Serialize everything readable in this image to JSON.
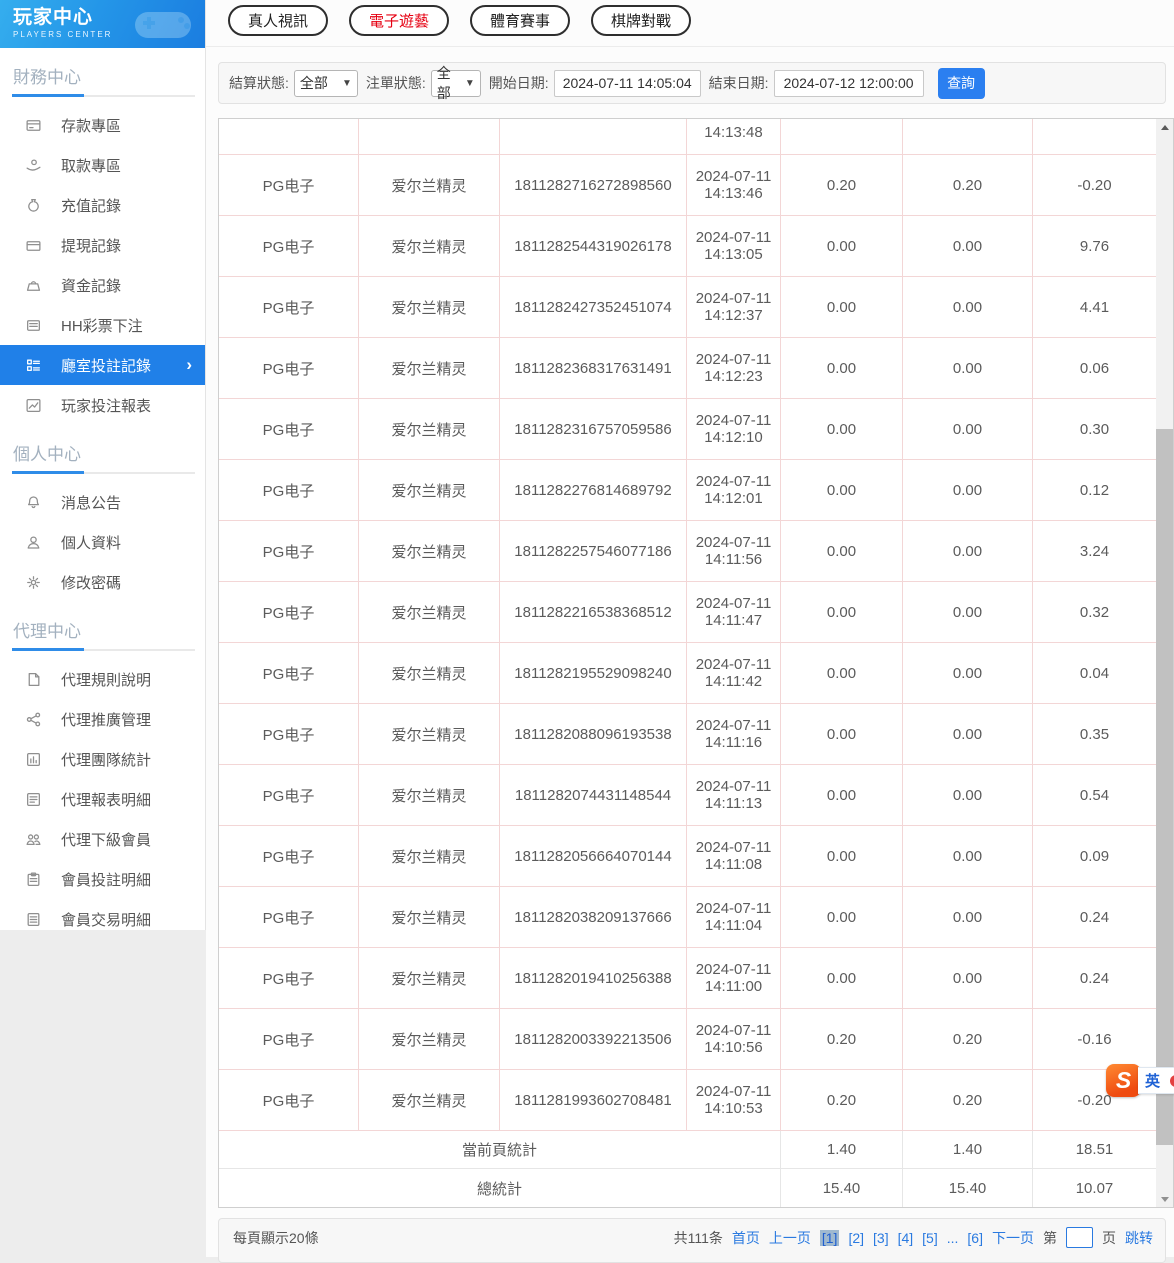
{
  "sidebar": {
    "logo_title": "玩家中心",
    "logo_subtitle": "PLAYERS CENTER",
    "sections": [
      {
        "title": "財務中心",
        "items": [
          {
            "label": "存款專區",
            "icon": "deposit-card-icon",
            "active": false
          },
          {
            "label": "取款專區",
            "icon": "withdraw-hand-icon",
            "active": false
          },
          {
            "label": "充值記錄",
            "icon": "recharge-record-icon",
            "active": false
          },
          {
            "label": "提現記錄",
            "icon": "withdraw-record-icon",
            "active": false
          },
          {
            "label": "資金記錄",
            "icon": "funds-record-icon",
            "active": false
          },
          {
            "label": "HH彩票下注",
            "icon": "lottery-bet-icon",
            "active": false
          },
          {
            "label": "廳室投註記錄",
            "icon": "room-bet-record-icon",
            "active": true
          },
          {
            "label": "玩家投注報表",
            "icon": "player-bet-report-icon",
            "active": false
          }
        ]
      },
      {
        "title": "個人中心",
        "items": [
          {
            "label": "消息公告",
            "icon": "announcement-bell-icon",
            "active": false
          },
          {
            "label": "個人資料",
            "icon": "profile-person-icon",
            "active": false
          },
          {
            "label": "修改密碼",
            "icon": "change-password-gear-icon",
            "active": false
          }
        ]
      },
      {
        "title": "代理中心",
        "items": [
          {
            "label": "代理規則說明",
            "icon": "agent-rules-doc-icon",
            "active": false
          },
          {
            "label": "代理推廣管理",
            "icon": "agent-promo-share-icon",
            "active": false
          },
          {
            "label": "代理團隊統計",
            "icon": "agent-team-stats-icon",
            "active": false
          },
          {
            "label": "代理報表明細",
            "icon": "agent-report-detail-icon",
            "active": false
          },
          {
            "label": "代理下級會員",
            "icon": "agent-members-people-icon",
            "active": false
          },
          {
            "label": "會員投註明細",
            "icon": "member-bet-detail-icon",
            "active": false
          },
          {
            "label": "會員交易明細",
            "icon": "member-trans-detail-icon",
            "active": false
          }
        ]
      }
    ]
  },
  "tabs": [
    {
      "label": "真人視訊",
      "active": false
    },
    {
      "label": "電子遊藝",
      "active": true
    },
    {
      "label": "體育賽事",
      "active": false
    },
    {
      "label": "棋牌對戰",
      "active": false
    }
  ],
  "filters": {
    "settle_status_label": "結算狀態:",
    "settle_status_value": "全部",
    "order_status_label": "注單狀態:",
    "order_status_value": "全部",
    "start_date_label": "開始日期:",
    "start_date_value": "2024-07-11 14:05:04",
    "end_date_label": "結束日期:",
    "end_date_value": "2024-07-12 12:00:00",
    "search_button": "查詢"
  },
  "table": {
    "partial_row_time": "14:13:48",
    "rows": [
      {
        "platform": "PG电子",
        "game": "爱尔兰精灵",
        "order_id": "1811282716272898560",
        "date": "2024-07-11",
        "time": "14:13:46",
        "bet": "0.20",
        "valid_bet": "0.20",
        "win_loss": "-0.20"
      },
      {
        "platform": "PG电子",
        "game": "爱尔兰精灵",
        "order_id": "1811282544319026178",
        "date": "2024-07-11",
        "time": "14:13:05",
        "bet": "0.00",
        "valid_bet": "0.00",
        "win_loss": "9.76"
      },
      {
        "platform": "PG电子",
        "game": "爱尔兰精灵",
        "order_id": "1811282427352451074",
        "date": "2024-07-11",
        "time": "14:12:37",
        "bet": "0.00",
        "valid_bet": "0.00",
        "win_loss": "4.41"
      },
      {
        "platform": "PG电子",
        "game": "爱尔兰精灵",
        "order_id": "1811282368317631491",
        "date": "2024-07-11",
        "time": "14:12:23",
        "bet": "0.00",
        "valid_bet": "0.00",
        "win_loss": "0.06"
      },
      {
        "platform": "PG电子",
        "game": "爱尔兰精灵",
        "order_id": "1811282316757059586",
        "date": "2024-07-11",
        "time": "14:12:10",
        "bet": "0.00",
        "valid_bet": "0.00",
        "win_loss": "0.30"
      },
      {
        "platform": "PG电子",
        "game": "爱尔兰精灵",
        "order_id": "1811282276814689792",
        "date": "2024-07-11",
        "time": "14:12:01",
        "bet": "0.00",
        "valid_bet": "0.00",
        "win_loss": "0.12"
      },
      {
        "platform": "PG电子",
        "game": "爱尔兰精灵",
        "order_id": "1811282257546077186",
        "date": "2024-07-11",
        "time": "14:11:56",
        "bet": "0.00",
        "valid_bet": "0.00",
        "win_loss": "3.24"
      },
      {
        "platform": "PG电子",
        "game": "爱尔兰精灵",
        "order_id": "1811282216538368512",
        "date": "2024-07-11",
        "time": "14:11:47",
        "bet": "0.00",
        "valid_bet": "0.00",
        "win_loss": "0.32"
      },
      {
        "platform": "PG电子",
        "game": "爱尔兰精灵",
        "order_id": "1811282195529098240",
        "date": "2024-07-11",
        "time": "14:11:42",
        "bet": "0.00",
        "valid_bet": "0.00",
        "win_loss": "0.04"
      },
      {
        "platform": "PG电子",
        "game": "爱尔兰精灵",
        "order_id": "1811282088096193538",
        "date": "2024-07-11",
        "time": "14:11:16",
        "bet": "0.00",
        "valid_bet": "0.00",
        "win_loss": "0.35"
      },
      {
        "platform": "PG电子",
        "game": "爱尔兰精灵",
        "order_id": "1811282074431148544",
        "date": "2024-07-11",
        "time": "14:11:13",
        "bet": "0.00",
        "valid_bet": "0.00",
        "win_loss": "0.54"
      },
      {
        "platform": "PG电子",
        "game": "爱尔兰精灵",
        "order_id": "1811282056664070144",
        "date": "2024-07-11",
        "time": "14:11:08",
        "bet": "0.00",
        "valid_bet": "0.00",
        "win_loss": "0.09"
      },
      {
        "platform": "PG电子",
        "game": "爱尔兰精灵",
        "order_id": "1811282038209137666",
        "date": "2024-07-11",
        "time": "14:11:04",
        "bet": "0.00",
        "valid_bet": "0.00",
        "win_loss": "0.24"
      },
      {
        "platform": "PG电子",
        "game": "爱尔兰精灵",
        "order_id": "1811282019410256388",
        "date": "2024-07-11",
        "time": "14:11:00",
        "bet": "0.00",
        "valid_bet": "0.00",
        "win_loss": "0.24"
      },
      {
        "platform": "PG电子",
        "game": "爱尔兰精灵",
        "order_id": "1811282003392213506",
        "date": "2024-07-11",
        "time": "14:10:56",
        "bet": "0.20",
        "valid_bet": "0.20",
        "win_loss": "-0.16"
      },
      {
        "platform": "PG电子",
        "game": "爱尔兰精灵",
        "order_id": "1811281993602708481",
        "date": "2024-07-11",
        "time": "14:10:53",
        "bet": "0.20",
        "valid_bet": "0.20",
        "win_loss": "-0.20"
      }
    ],
    "page_total": {
      "label": "當前頁統計",
      "bet": "1.40",
      "valid_bet": "1.40",
      "win_loss": "18.51"
    },
    "grand_total": {
      "label": "總統計",
      "bet": "15.40",
      "valid_bet": "15.40",
      "win_loss": "10.07"
    }
  },
  "pagination": {
    "page_size_text": "每頁顯示20條",
    "total_text": "共111条",
    "first": "首页",
    "prev": "上一页",
    "pages": [
      {
        "label": "[1]",
        "current": true
      },
      {
        "label": "[2]",
        "current": false
      },
      {
        "label": "[3]",
        "current": false
      },
      {
        "label": "[4]",
        "current": false
      },
      {
        "label": "[5]",
        "current": false
      },
      {
        "label": "...",
        "current": false
      },
      {
        "label": "[6]",
        "current": false
      }
    ],
    "next": "下一页",
    "jump_prefix": "第",
    "jump_suffix": "页",
    "jump_action": "跳转",
    "jump_value": ""
  },
  "ime_indicator": {
    "logo": "S",
    "mode": "英"
  },
  "colors": {
    "accent_blue": "#2080e8",
    "tab_active_red": "#e60012",
    "table_border_pink": "#f3d6d6",
    "link_blue": "#2a7ae0",
    "header_gradient_start": "#35aeee",
    "header_gradient_end": "#1b7de0",
    "ime_orange": "#ef4b10"
  }
}
